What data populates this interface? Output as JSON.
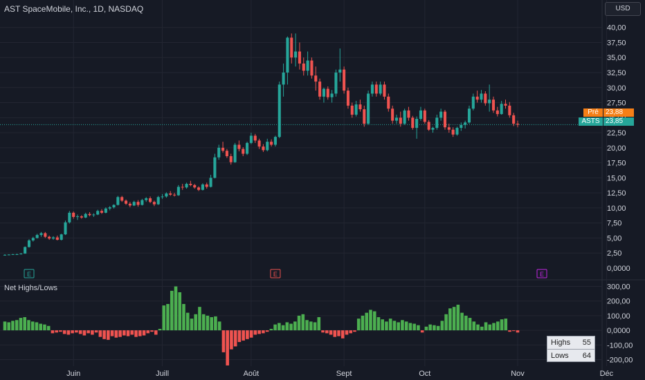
{
  "header": {
    "title": "AST SpaceMobile, Inc., 1D, NASDAQ",
    "currency_button": "USD"
  },
  "indicator": {
    "title": "Net Highs/Lows"
  },
  "price_labels": {
    "pre_label": "Pré",
    "pre_value": "23,88",
    "symbol": "ASTS",
    "last_value": "23,85"
  },
  "highs_lows_table": {
    "highs_label": "Highs",
    "highs_value": "55",
    "lows_label": "Lows",
    "lows_value": "64"
  },
  "colors": {
    "up": "#26a69a",
    "down": "#ef5350",
    "pre": "#f57f17",
    "grid": "#232632",
    "text": "#d1d4dc"
  },
  "chart_data": [
    {
      "type": "candlestick",
      "ylim": [
        0,
        41
      ],
      "y_ticks": [
        "2,50",
        "5,00",
        "7,50",
        "10,00",
        "12,50",
        "15,00",
        "17,50",
        "20,00",
        "22,50",
        "25,00",
        "27,50",
        "30,00",
        "32,50",
        "35,00",
        "37,50",
        "40,00"
      ],
      "zero_tick": "0,0000",
      "x_ticks": [
        "Juin",
        "Juill",
        "Août",
        "Sept",
        "Oct",
        "Nov",
        "Déc"
      ],
      "last_price": 23.85,
      "pre_price": 23.88,
      "earnings_markers": [
        {
          "label": "E",
          "date_index": 6,
          "color": "#26a69a"
        },
        {
          "label": "E",
          "date_index": 67,
          "color": "#ef5350"
        },
        {
          "label": "E",
          "date_index": 133,
          "color": "#c327e3"
        }
      ],
      "candles": [
        [
          2.2,
          2.3,
          2.1,
          2.2
        ],
        [
          2.2,
          2.3,
          2.15,
          2.25
        ],
        [
          2.25,
          2.35,
          2.2,
          2.3
        ],
        [
          2.3,
          2.4,
          2.2,
          2.3
        ],
        [
          2.3,
          2.5,
          2.25,
          2.4
        ],
        [
          2.4,
          3.6,
          2.4,
          3.5
        ],
        [
          3.5,
          4.8,
          3.4,
          4.6
        ],
        [
          4.6,
          5.2,
          4.4,
          5.0
        ],
        [
          5.0,
          5.7,
          4.9,
          5.5
        ],
        [
          5.5,
          6.0,
          5.2,
          5.8
        ],
        [
          5.8,
          6.0,
          5.0,
          5.2
        ],
        [
          5.2,
          5.4,
          4.7,
          4.9
        ],
        [
          4.9,
          5.3,
          4.7,
          5.1
        ],
        [
          5.1,
          5.4,
          4.6,
          4.7
        ],
        [
          4.7,
          5.7,
          4.6,
          5.6
        ],
        [
          5.6,
          7.9,
          5.5,
          7.6
        ],
        [
          7.6,
          9.5,
          7.4,
          9.2
        ],
        [
          9.2,
          9.4,
          8.2,
          8.5
        ],
        [
          8.5,
          8.9,
          8.0,
          8.6
        ],
        [
          8.6,
          8.8,
          8.2,
          8.4
        ],
        [
          8.4,
          9.2,
          8.3,
          9.0
        ],
        [
          9.0,
          9.3,
          8.6,
          8.8
        ],
        [
          8.8,
          9.1,
          8.5,
          8.9
        ],
        [
          8.9,
          9.7,
          8.8,
          9.5
        ],
        [
          9.5,
          9.8,
          9.0,
          9.2
        ],
        [
          9.2,
          10.1,
          9.1,
          9.9
        ],
        [
          9.9,
          10.3,
          9.6,
          10.1
        ],
        [
          10.1,
          10.6,
          9.9,
          10.5
        ],
        [
          10.5,
          12.0,
          10.4,
          11.8
        ],
        [
          11.8,
          12.0,
          11.0,
          11.2
        ],
        [
          11.2,
          11.4,
          10.5,
          10.7
        ],
        [
          10.7,
          11.0,
          10.1,
          10.4
        ],
        [
          10.4,
          11.2,
          10.3,
          11.0
        ],
        [
          11.0,
          11.3,
          10.2,
          10.5
        ],
        [
          10.5,
          11.5,
          10.4,
          11.3
        ],
        [
          11.3,
          11.8,
          11.0,
          11.6
        ],
        [
          11.6,
          11.9,
          10.8,
          11.0
        ],
        [
          11.0,
          11.2,
          10.3,
          10.6
        ],
        [
          10.6,
          12.0,
          10.5,
          11.8
        ],
        [
          11.8,
          12.3,
          11.5,
          11.9
        ],
        [
          11.9,
          12.6,
          11.7,
          12.4
        ],
        [
          12.4,
          12.8,
          12.0,
          12.2
        ],
        [
          12.2,
          12.5,
          11.9,
          12.1
        ],
        [
          12.1,
          13.8,
          12.0,
          13.5
        ],
        [
          13.5,
          14.0,
          13.0,
          13.4
        ],
        [
          13.4,
          14.2,
          13.2,
          14.0
        ],
        [
          14.0,
          14.5,
          13.6,
          13.8
        ],
        [
          13.8,
          14.0,
          13.2,
          13.4
        ],
        [
          13.4,
          13.6,
          12.8,
          13.0
        ],
        [
          13.0,
          14.1,
          12.9,
          13.9
        ],
        [
          13.9,
          14.2,
          13.2,
          13.5
        ],
        [
          13.5,
          15.5,
          13.4,
          15.0
        ],
        [
          15.0,
          19.0,
          14.9,
          18.4
        ],
        [
          18.4,
          20.5,
          18.0,
          20.0
        ],
        [
          20.0,
          21.0,
          19.2,
          19.5
        ],
        [
          19.5,
          19.8,
          18.3,
          18.6
        ],
        [
          18.6,
          19.0,
          17.2,
          17.6
        ],
        [
          17.6,
          20.8,
          17.5,
          20.5
        ],
        [
          20.5,
          21.2,
          19.4,
          19.8
        ],
        [
          19.8,
          20.1,
          18.6,
          19.0
        ],
        [
          19.0,
          21.0,
          18.8,
          20.8
        ],
        [
          20.8,
          22.5,
          20.6,
          22.0
        ],
        [
          22.0,
          22.3,
          20.8,
          21.2
        ],
        [
          21.2,
          21.5,
          19.8,
          20.2
        ],
        [
          20.2,
          20.6,
          19.3,
          19.6
        ],
        [
          19.6,
          21.5,
          19.4,
          21.0
        ],
        [
          21.0,
          21.4,
          20.2,
          20.5
        ],
        [
          20.5,
          22.0,
          20.2,
          21.8
        ],
        [
          21.8,
          31.0,
          21.6,
          30.5
        ],
        [
          30.5,
          34.0,
          28.5,
          32.5
        ],
        [
          32.5,
          38.5,
          30.5,
          38.3
        ],
        [
          38.3,
          39.0,
          34.0,
          35.0
        ],
        [
          35.0,
          39.0,
          33.5,
          36.0
        ],
        [
          36.0,
          37.5,
          33.0,
          34.0
        ],
        [
          34.0,
          35.0,
          32.0,
          32.8
        ],
        [
          32.8,
          36.0,
          32.0,
          34.5
        ],
        [
          34.5,
          35.0,
          31.5,
          32.0
        ],
        [
          32.0,
          33.5,
          29.5,
          31.0
        ],
        [
          31.0,
          31.5,
          28.0,
          28.5
        ],
        [
          28.5,
          30.0,
          27.5,
          29.8
        ],
        [
          29.8,
          30.2,
          28.0,
          28.4
        ],
        [
          28.4,
          29.6,
          27.5,
          29.0
        ],
        [
          29.0,
          33.0,
          28.5,
          32.5
        ],
        [
          32.5,
          36.5,
          31.0,
          33.0
        ],
        [
          33.0,
          33.5,
          29.0,
          29.5
        ],
        [
          29.5,
          30.0,
          26.5,
          27.0
        ],
        [
          27.0,
          27.5,
          25.0,
          25.5
        ],
        [
          25.5,
          27.8,
          25.2,
          27.2
        ],
        [
          27.2,
          28.0,
          26.0,
          26.4
        ],
        [
          26.4,
          27.0,
          23.5,
          24.0
        ],
        [
          24.0,
          29.5,
          23.8,
          29.0
        ],
        [
          29.0,
          31.0,
          28.5,
          30.5
        ],
        [
          30.5,
          31.0,
          28.5,
          29.0
        ],
        [
          29.0,
          31.0,
          28.7,
          30.5
        ],
        [
          30.5,
          31.0,
          28.0,
          28.5
        ],
        [
          28.5,
          29.0,
          26.0,
          26.5
        ],
        [
          26.5,
          27.0,
          24.0,
          24.5
        ],
        [
          24.5,
          25.5,
          24.0,
          25.0
        ],
        [
          25.0,
          26.0,
          23.5,
          24.0
        ],
        [
          24.0,
          26.5,
          23.8,
          26.2
        ],
        [
          26.2,
          26.8,
          24.5,
          25.0
        ],
        [
          25.0,
          25.3,
          23.0,
          23.3
        ],
        [
          23.3,
          25.2,
          21.5,
          24.8
        ],
        [
          24.8,
          26.8,
          24.5,
          26.2
        ],
        [
          26.2,
          26.5,
          24.0,
          24.3
        ],
        [
          24.3,
          24.6,
          22.8,
          23.0
        ],
        [
          23.0,
          23.5,
          22.5,
          23.3
        ],
        [
          23.3,
          25.5,
          23.0,
          25.0
        ],
        [
          25.0,
          26.5,
          24.5,
          26.0
        ],
        [
          26.0,
          26.3,
          23.0,
          23.4
        ],
        [
          23.4,
          24.0,
          22.5,
          23.0
        ],
        [
          23.0,
          23.4,
          21.8,
          22.2
        ],
        [
          22.2,
          23.5,
          22.0,
          23.3
        ],
        [
          23.3,
          24.2,
          22.8,
          23.8
        ],
        [
          23.8,
          24.5,
          23.2,
          24.2
        ],
        [
          24.2,
          27.0,
          24.0,
          26.5
        ],
        [
          26.5,
          29.0,
          26.2,
          28.5
        ],
        [
          28.5,
          29.5,
          27.5,
          28.0
        ],
        [
          28.0,
          29.6,
          27.5,
          29.0
        ],
        [
          29.0,
          29.4,
          27.0,
          27.4
        ],
        [
          27.4,
          30.5,
          26.0,
          28.0
        ],
        [
          28.0,
          28.5,
          25.8,
          26.2
        ],
        [
          26.2,
          26.8,
          25.2,
          25.6
        ],
        [
          25.6,
          27.8,
          25.5,
          27.3
        ],
        [
          27.3,
          28.0,
          26.5,
          27.0
        ],
        [
          27.0,
          27.6,
          25.0,
          25.4
        ],
        [
          25.4,
          25.8,
          23.6,
          24.0
        ],
        [
          24.0,
          24.5,
          23.4,
          23.85
        ]
      ]
    },
    {
      "type": "bar",
      "title": "Net Highs/Lows",
      "ylim": [
        -245,
        345
      ],
      "y_ticks": [
        "-200,00",
        "-100,00",
        "0,0000",
        "100,00",
        "200,00",
        "300,00"
      ],
      "values": [
        60,
        55,
        65,
        70,
        85,
        90,
        70,
        60,
        55,
        45,
        40,
        30,
        -20,
        -15,
        -10,
        -25,
        -30,
        -20,
        -15,
        -25,
        -35,
        -20,
        -30,
        -15,
        -45,
        -60,
        -65,
        -40,
        -50,
        -45,
        -35,
        -40,
        -30,
        -45,
        -40,
        -35,
        -20,
        -10,
        -30,
        10,
        170,
        180,
        270,
        300,
        260,
        180,
        120,
        80,
        110,
        160,
        110,
        100,
        90,
        95,
        60,
        -150,
        -240,
        -130,
        -110,
        -80,
        -70,
        -60,
        -50,
        -30,
        -25,
        -20,
        -10,
        10,
        40,
        50,
        35,
        55,
        45,
        60,
        100,
        110,
        70,
        60,
        55,
        90,
        -15,
        -20,
        -30,
        -45,
        -40,
        -55,
        -30,
        -20,
        -10,
        80,
        100,
        120,
        140,
        130,
        90,
        75,
        60,
        80,
        65,
        55,
        70,
        60,
        50,
        45,
        35,
        -15,
        25,
        40,
        35,
        30,
        65,
        110,
        150,
        160,
        175,
        120,
        100,
        85,
        60,
        40,
        25,
        55,
        40,
        50,
        60,
        75,
        80,
        -10,
        -5,
        -15
      ]
    }
  ]
}
